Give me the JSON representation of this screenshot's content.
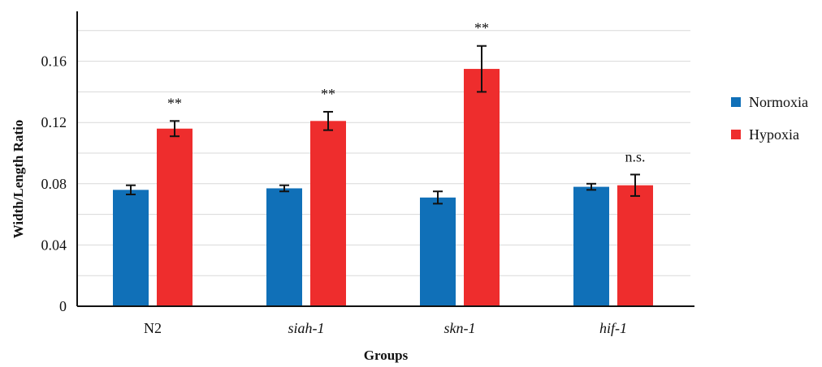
{
  "chart_data": {
    "type": "bar",
    "xlabel": "Groups",
    "ylabel": "Width/Length Ratio",
    "ylim": [
      0,
      0.19
    ],
    "yticks": [
      "0",
      "0.04",
      "0.08",
      "0.12",
      "0.16"
    ],
    "grid": true,
    "legend_position": "right",
    "categories": [
      {
        "label": "N2",
        "italic": false
      },
      {
        "label": "siah-1",
        "italic": true
      },
      {
        "label": "skn-1",
        "italic": true
      },
      {
        "label": "hif-1",
        "italic": true
      }
    ],
    "series": [
      {
        "name": "Normoxia",
        "color": "#1070b8",
        "values": [
          0.076,
          0.077,
          0.071,
          0.078
        ],
        "errors": [
          0.003,
          0.002,
          0.004,
          0.002
        ]
      },
      {
        "name": "Hypoxia",
        "color": "#ee2d2d",
        "values": [
          0.116,
          0.121,
          0.155,
          0.079
        ],
        "errors": [
          0.005,
          0.006,
          0.015,
          0.007
        ]
      }
    ],
    "significance": [
      "**",
      "**",
      "**",
      "n.s."
    ]
  }
}
